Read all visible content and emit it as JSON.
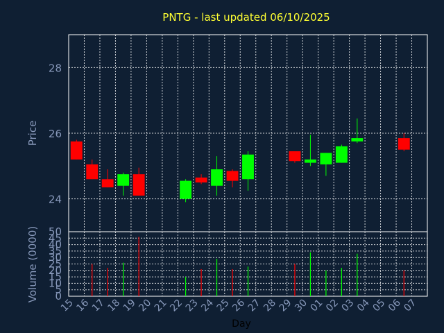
{
  "chart_data": [
    {
      "type": "candlestick",
      "title": "PNTG - last updated 06/10/2025",
      "ylabel": "Price",
      "ylim": [
        23,
        29
      ],
      "yticks": [
        24,
        26,
        28
      ],
      "grid": true,
      "colors": {
        "up": "#00ff00",
        "down": "#ff0000",
        "grid": "#ffffff",
        "axis": "#ffffff",
        "background": "#0f1f33",
        "title": "#ffff33",
        "label": "#8899bb"
      },
      "x": [
        "15",
        "16",
        "17",
        "18",
        "19",
        "20",
        "21",
        "22",
        "23",
        "24",
        "25",
        "26",
        "27",
        "28",
        "29",
        "30",
        "01",
        "02",
        "03",
        "04",
        "05",
        "06",
        "07"
      ],
      "candles": [
        {
          "x": "15",
          "open": 25.75,
          "high": 25.8,
          "low": 25.2,
          "close": 25.2
        },
        {
          "x": "16",
          "open": 25.05,
          "high": 25.2,
          "low": 24.6,
          "close": 24.6
        },
        {
          "x": "17",
          "open": 24.6,
          "high": 24.9,
          "low": 24.35,
          "close": 24.35
        },
        {
          "x": "18",
          "open": 24.4,
          "high": 24.8,
          "low": 24.1,
          "close": 24.75
        },
        {
          "x": "19",
          "open": 24.75,
          "high": 24.95,
          "low": 24.1,
          "close": 24.1
        },
        {
          "x": "22",
          "open": 24.0,
          "high": 24.6,
          "low": 23.9,
          "close": 24.55
        },
        {
          "x": "23",
          "open": 24.65,
          "high": 24.75,
          "low": 24.45,
          "close": 24.5
        },
        {
          "x": "24",
          "open": 24.4,
          "high": 25.3,
          "low": 24.1,
          "close": 24.9
        },
        {
          "x": "25",
          "open": 24.85,
          "high": 24.9,
          "low": 24.35,
          "close": 24.55
        },
        {
          "x": "26",
          "open": 24.6,
          "high": 25.45,
          "low": 24.25,
          "close": 25.35
        },
        {
          "x": "29",
          "open": 25.45,
          "high": 25.45,
          "low": 25.1,
          "close": 25.15
        },
        {
          "x": "30",
          "open": 25.1,
          "high": 25.95,
          "low": 25.0,
          "close": 25.2
        },
        {
          "x": "01",
          "open": 25.05,
          "high": 25.4,
          "low": 24.7,
          "close": 25.4
        },
        {
          "x": "02",
          "open": 25.1,
          "high": 25.65,
          "low": 25.1,
          "close": 25.6
        },
        {
          "x": "03",
          "open": 25.75,
          "high": 26.45,
          "low": 25.7,
          "close": 25.85
        },
        {
          "x": "06",
          "open": 25.85,
          "high": 26.0,
          "low": 25.45,
          "close": 25.5
        }
      ]
    },
    {
      "type": "bar",
      "ylabel": "Volume (0000)",
      "xlabel": "Day",
      "ylim": [
        0,
        50
      ],
      "yticks": [
        0,
        5,
        10,
        15,
        20,
        25,
        30,
        35,
        40,
        45,
        50
      ],
      "grid": true,
      "categories": [
        "15",
        "16",
        "17",
        "18",
        "19",
        "20",
        "21",
        "22",
        "23",
        "24",
        "25",
        "26",
        "27",
        "28",
        "29",
        "30",
        "01",
        "02",
        "03",
        "04",
        "05",
        "06",
        "07"
      ],
      "bars": [
        {
          "x": "16",
          "value": 25,
          "color": "#ff0000"
        },
        {
          "x": "17",
          "value": 22,
          "color": "#ff0000"
        },
        {
          "x": "18",
          "value": 26,
          "color": "#00ff00"
        },
        {
          "x": "19",
          "value": 46,
          "color": "#ff0000"
        },
        {
          "x": "22",
          "value": 15,
          "color": "#00ff00"
        },
        {
          "x": "23",
          "value": 21,
          "color": "#ff0000"
        },
        {
          "x": "24",
          "value": 29,
          "color": "#00ff00"
        },
        {
          "x": "25",
          "value": 21,
          "color": "#ff0000"
        },
        {
          "x": "26",
          "value": 23,
          "color": "#00ff00"
        },
        {
          "x": "29",
          "value": 25,
          "color": "#ff0000"
        },
        {
          "x": "30",
          "value": 34,
          "color": "#00ff00"
        },
        {
          "x": "01",
          "value": 20,
          "color": "#00ff00"
        },
        {
          "x": "02",
          "value": 22,
          "color": "#00ff00"
        },
        {
          "x": "03",
          "value": 33,
          "color": "#00ff00"
        },
        {
          "x": "06",
          "value": 20,
          "color": "#ff0000"
        }
      ]
    }
  ]
}
